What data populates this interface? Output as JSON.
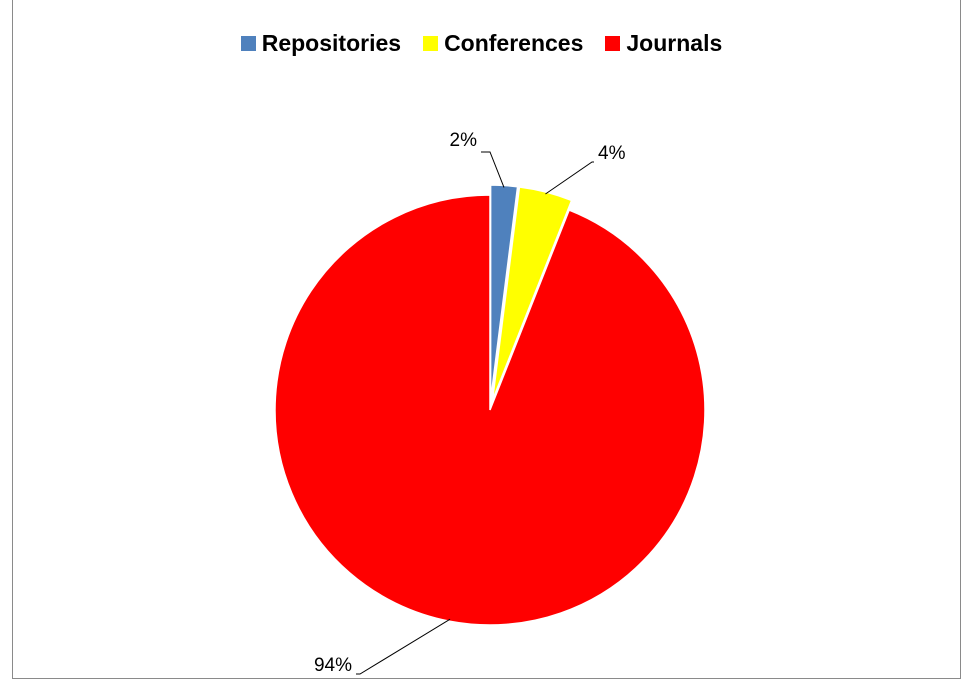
{
  "chart_data": {
    "type": "pie",
    "title": "",
    "title_partial": "",
    "categories": [
      "Repositories",
      "Conferences",
      "Journals"
    ],
    "values": [
      2,
      4,
      94
    ],
    "labels": [
      "2%",
      "4%",
      "94%"
    ],
    "colors": [
      "#4f81bd",
      "#ffff00",
      "#ff0000"
    ],
    "exploded": [
      true,
      true,
      false
    ],
    "legend_position": "top"
  }
}
